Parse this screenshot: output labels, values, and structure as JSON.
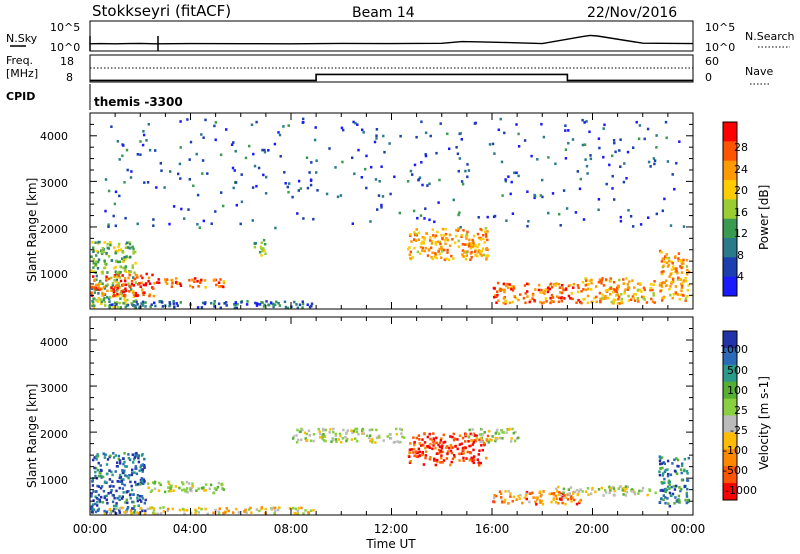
{
  "header": {
    "station": "Stokkseyri (fitACF)",
    "beam": "Beam 14",
    "date": "22/Nov/2016"
  },
  "noise_panel": {
    "left_label": "N.Sky",
    "left_ticks": [
      "10^5",
      "10^0"
    ],
    "right_ticks": [
      "10^5",
      "10^0"
    ],
    "right_label": "N.Search"
  },
  "freq_panel": {
    "left_label_line1": "Freq.",
    "left_label_line2": "[MHz]",
    "left_ticks": [
      "18",
      "8"
    ],
    "right_ticks": [
      "60",
      "0"
    ],
    "right_label": "Nave",
    "cpid_label": "CPID",
    "cpid_value": "themis -3300"
  },
  "colors": {
    "power": [
      "#1a1aff",
      "#1c3fb0",
      "#2a7a8c",
      "#3a9a50",
      "#9acd32",
      "#ffcc00",
      "#ff9900",
      "#ff5500",
      "#ff0000"
    ],
    "velocity": [
      "#2233aa",
      "#2a6ab8",
      "#2a9a8a",
      "#55b030",
      "#88d040",
      "#bbbbbb",
      "#ffbb00",
      "#ff8800",
      "#ff5500",
      "#ff0000"
    ]
  },
  "chart_data": [
    {
      "type": "line",
      "name": "noise",
      "x": [
        0,
        0.4,
        1,
        2,
        2.6,
        4,
        6,
        8,
        10,
        12,
        14,
        14.8,
        15.6,
        16.4,
        18,
        19.6,
        19.9,
        20.2,
        22,
        24
      ],
      "y": [
        0.6,
        0.62,
        0.6,
        0.63,
        0.6,
        0.62,
        0.61,
        0.6,
        0.63,
        0.62,
        0.64,
        0.78,
        0.76,
        0.72,
        0.62,
        1.2,
        1.3,
        1.25,
        0.65,
        0.62
      ],
      "xlim": [
        0,
        24
      ]
    },
    {
      "type": "line",
      "name": "frequency",
      "x": [
        0,
        9,
        9,
        19,
        19,
        24
      ],
      "y": [
        8.6,
        8.6,
        10.8,
        10.8,
        8.6,
        8.6
      ],
      "xlim": [
        0,
        24
      ],
      "ylim": [
        8,
        18
      ]
    },
    {
      "type": "heatmap",
      "title": "Power",
      "ylabel": "Slant Range [km]",
      "colorbar_label": "Power [dB]",
      "colorbar_ticks": [
        "28",
        "24",
        "20",
        "16",
        "12",
        "8",
        "4"
      ],
      "y_ticks": [
        "4000",
        "3000",
        "2000",
        "1000"
      ],
      "xlim": [
        0,
        24
      ],
      "ylim": [
        200,
        4500
      ],
      "regions": [
        {
          "t0": 0.0,
          "t1": 1.8,
          "r0": 250,
          "r1": 1700,
          "level": 0.45
        },
        {
          "t0": 0.0,
          "t1": 2.5,
          "r0": 500,
          "r1": 1000,
          "level": 0.85
        },
        {
          "t0": 2.5,
          "t1": 5.3,
          "r0": 700,
          "r1": 900,
          "level": 0.8
        },
        {
          "t0": 0.5,
          "t1": 9.0,
          "r0": 250,
          "r1": 400,
          "level": 0.25
        },
        {
          "t0": 6.5,
          "t1": 7.0,
          "r0": 1400,
          "r1": 1800,
          "level": 0.45
        },
        {
          "t0": 12.6,
          "t1": 15.8,
          "r0": 1300,
          "r1": 2000,
          "level": 0.7
        },
        {
          "t0": 16.0,
          "t1": 19.5,
          "r0": 350,
          "r1": 800,
          "level": 0.8
        },
        {
          "t0": 19.5,
          "t1": 22.5,
          "r0": 350,
          "r1": 900,
          "level": 0.7
        },
        {
          "t0": 22.6,
          "t1": 23.8,
          "r0": 400,
          "r1": 1500,
          "level": 0.7
        },
        {
          "t0": 0.5,
          "t1": 23.8,
          "r0": 2000,
          "r1": 4400,
          "level": 0.2
        }
      ]
    },
    {
      "type": "heatmap",
      "title": "Velocity",
      "ylabel": "Slant Range [km]",
      "xlabel": "Time UT",
      "colorbar_label": "Velocity [m s-1]",
      "colorbar_ticks": [
        "1000",
        "500",
        "100",
        "25",
        "-25",
        "-100",
        "-500",
        "-1000"
      ],
      "y_ticks": [
        "4000",
        "3000",
        "2000",
        "1000"
      ],
      "x_ticks": [
        "00:00",
        "04:00",
        "08:00",
        "12:00",
        "16:00",
        "20:00",
        "00:00"
      ],
      "xlim": [
        0,
        24
      ],
      "ylim": [
        200,
        4500
      ],
      "regions": [
        {
          "t0": 0.0,
          "t1": 2.2,
          "r0": 250,
          "r1": 1600,
          "level": 0.15
        },
        {
          "t0": 2.2,
          "t1": 5.4,
          "r0": 700,
          "r1": 950,
          "level": 0.5
        },
        {
          "t0": 0.5,
          "t1": 9.0,
          "r0": 250,
          "r1": 400,
          "level": 0.6
        },
        {
          "t0": 8.0,
          "t1": 12.5,
          "r0": 1800,
          "r1": 2100,
          "level": 0.5
        },
        {
          "t0": 12.6,
          "t1": 15.8,
          "r0": 1300,
          "r1": 2000,
          "level": 0.9
        },
        {
          "t0": 15.0,
          "t1": 17.0,
          "r0": 1800,
          "r1": 2100,
          "level": 0.5
        },
        {
          "t0": 16.0,
          "t1": 19.5,
          "r0": 450,
          "r1": 750,
          "level": 0.75
        },
        {
          "t0": 18.5,
          "t1": 22.5,
          "r0": 650,
          "r1": 850,
          "level": 0.5
        },
        {
          "t0": 22.6,
          "t1": 23.8,
          "r0": 400,
          "r1": 1500,
          "level": 0.2
        }
      ]
    }
  ]
}
